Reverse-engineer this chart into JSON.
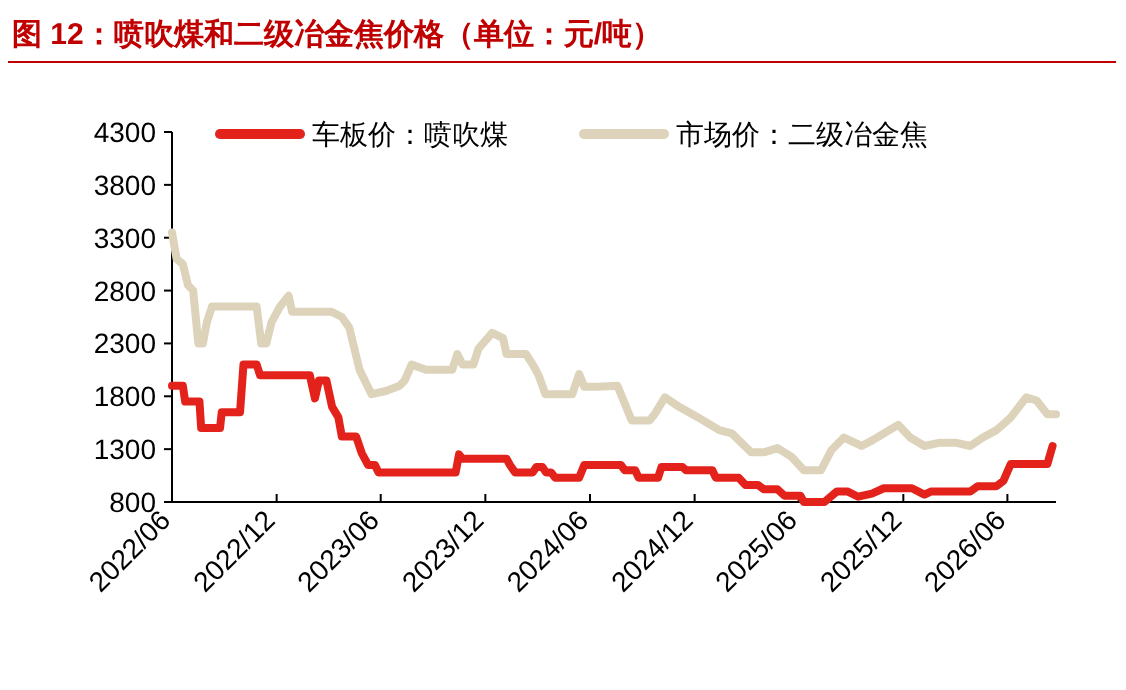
{
  "chart_data": {
    "type": "line",
    "title": "图 12：喷吹煤和二级冶金焦价格（单位：元/吨）",
    "xlim": [
      "2022-06-01",
      "2026-08-25"
    ],
    "xticks": [
      {
        "value": "2022-06-01",
        "label": "2022/06"
      },
      {
        "value": "2022-12-01",
        "label": "2022/12"
      },
      {
        "value": "2023-06-01",
        "label": "2023/06"
      },
      {
        "value": "2023-12-01",
        "label": "2023/12"
      },
      {
        "value": "2024-06-01",
        "label": "2024/06"
      },
      {
        "value": "2024-12-01",
        "label": "2024/12"
      },
      {
        "value": "2025-06-01",
        "label": "2025/06"
      },
      {
        "value": "2025-12-01",
        "label": "2025/12"
      },
      {
        "value": "2026-06-01",
        "label": "2026/06"
      }
    ],
    "ylim": [
      800,
      4300
    ],
    "yticks": [
      800,
      1300,
      1800,
      2300,
      2800,
      3300,
      3800,
      4300
    ],
    "grid": false,
    "legend": "top",
    "marker": "none",
    "line_style": "solid",
    "series": [
      {
        "name": "车板价：喷吹煤",
        "color": "#e3231b",
        "x": [
          "2022-06-01",
          "2022-06-20",
          "2022-06-24",
          "2022-07-19",
          "2022-07-22",
          "2022-08-24",
          "2022-08-27",
          "2022-09-28",
          "2022-10-04",
          "2022-10-27",
          "2022-11-02",
          "2023-01-28",
          "2023-02-06",
          "2023-02-13",
          "2023-02-26",
          "2023-03-08",
          "2023-03-19",
          "2023-03-25",
          "2023-04-19",
          "2023-04-29",
          "2023-05-10",
          "2023-05-22",
          "2023-05-28",
          "2023-10-10",
          "2023-10-16",
          "2023-10-22",
          "2024-01-07",
          "2024-01-13",
          "2024-01-22",
          "2024-02-22",
          "2024-02-28",
          "2024-03-10",
          "2024-03-16",
          "2024-03-25",
          "2024-04-01",
          "2024-05-13",
          "2024-05-22",
          "2024-07-25",
          "2024-08-01",
          "2024-08-19",
          "2024-08-25",
          "2024-09-28",
          "2024-10-04",
          "2024-11-10",
          "2024-11-16",
          "2025-01-01",
          "2025-01-07",
          "2025-02-16",
          "2025-02-28",
          "2025-03-22",
          "2025-04-01",
          "2025-04-25",
          "2025-05-07",
          "2025-06-04",
          "2025-06-10",
          "2025-07-16",
          "2025-08-07",
          "2025-08-25",
          "2025-09-13",
          "2025-10-07",
          "2025-10-28",
          "2025-12-16",
          "2026-01-07",
          "2026-01-19",
          "2026-03-28",
          "2026-04-10",
          "2026-05-13",
          "2026-05-25",
          "2026-06-07",
          "2026-08-10",
          "2026-08-19"
        ],
        "values": [
          1900,
          1900,
          1750,
          1750,
          1500,
          1500,
          1650,
          1650,
          2100,
          2100,
          2000,
          2000,
          1780,
          1950,
          1950,
          1700,
          1600,
          1420,
          1420,
          1260,
          1150,
          1150,
          1080,
          1080,
          1250,
          1210,
          1210,
          1150,
          1080,
          1080,
          1130,
          1130,
          1080,
          1080,
          1030,
          1030,
          1150,
          1150,
          1100,
          1100,
          1030,
          1030,
          1130,
          1130,
          1100,
          1100,
          1030,
          1030,
          960,
          960,
          920,
          920,
          860,
          860,
          800,
          800,
          900,
          900,
          850,
          880,
          930,
          930,
          870,
          900,
          900,
          950,
          950,
          1000,
          1160,
          1160,
          1330
        ]
      },
      {
        "name": "市场价：二级冶金焦",
        "color": "#ddd3bb",
        "x": [
          "2022-06-01",
          "2022-06-09",
          "2022-06-20",
          "2022-06-29",
          "2022-07-08",
          "2022-07-17",
          "2022-07-25",
          "2022-08-01",
          "2022-08-10",
          "2022-10-27",
          "2022-11-04",
          "2022-11-13",
          "2022-11-22",
          "2022-12-07",
          "2022-12-22",
          "2022-12-28",
          "2023-03-07",
          "2023-03-25",
          "2023-04-07",
          "2023-04-25",
          "2023-05-16",
          "2023-06-10",
          "2023-07-04",
          "2023-07-13",
          "2023-07-25",
          "2023-08-19",
          "2023-10-04",
          "2023-10-13",
          "2023-10-22",
          "2023-11-10",
          "2023-11-19",
          "2023-12-13",
          "2024-01-01",
          "2024-01-07",
          "2024-02-10",
          "2024-02-22",
          "2024-03-03",
          "2024-03-15",
          "2024-05-01",
          "2024-05-13",
          "2024-05-22",
          "2024-06-16",
          "2024-07-19",
          "2024-08-13",
          "2024-09-13",
          "2024-09-22",
          "2024-10-10",
          "2024-11-04",
          "2024-12-07",
          "2025-01-13",
          "2025-02-04",
          "2025-03-10",
          "2025-04-01",
          "2025-04-25",
          "2025-05-19",
          "2025-06-10",
          "2025-07-10",
          "2025-07-28",
          "2025-08-19",
          "2025-09-19",
          "2025-10-10",
          "2025-10-28",
          "2025-11-22",
          "2025-12-13",
          "2026-01-07",
          "2026-02-01",
          "2026-03-04",
          "2026-03-28",
          "2026-04-19",
          "2026-05-13",
          "2026-06-07",
          "2026-07-04",
          "2026-07-22",
          "2026-08-10",
          "2026-08-25"
        ],
        "values": [
          3350,
          3100,
          3050,
          2850,
          2800,
          2300,
          2300,
          2500,
          2650,
          2650,
          2300,
          2300,
          2500,
          2650,
          2750,
          2600,
          2600,
          2550,
          2450,
          2050,
          1820,
          1850,
          1900,
          1950,
          2100,
          2050,
          2050,
          2200,
          2100,
          2100,
          2250,
          2400,
          2350,
          2200,
          2200,
          2100,
          2000,
          1820,
          1820,
          2010,
          1890,
          1890,
          1900,
          1570,
          1570,
          1630,
          1790,
          1700,
          1600,
          1480,
          1450,
          1270,
          1270,
          1310,
          1230,
          1100,
          1100,
          1290,
          1410,
          1330,
          1390,
          1450,
          1530,
          1410,
          1330,
          1360,
          1360,
          1330,
          1410,
          1480,
          1600,
          1790,
          1760,
          1630,
          1630
        ]
      }
    ]
  }
}
